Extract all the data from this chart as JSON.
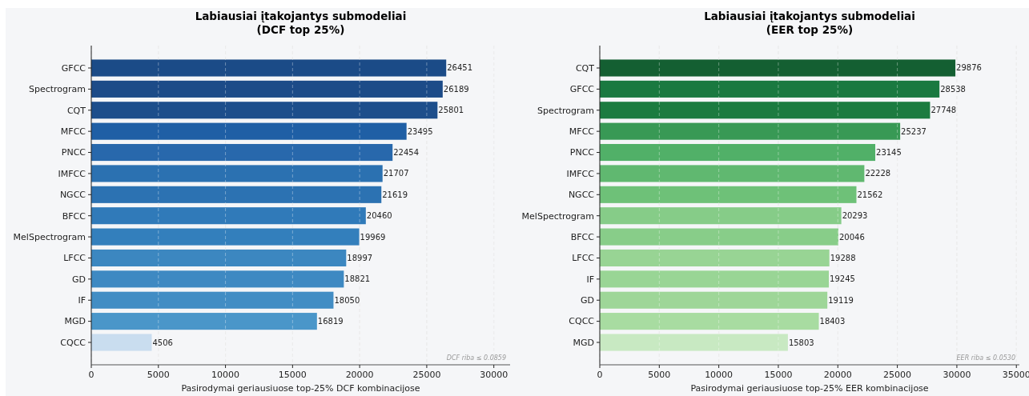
{
  "chart_data": [
    {
      "type": "bar",
      "orientation": "horizontal",
      "title": "Labiausiai įtakojantys submodeliai\n(DCF top 25%)",
      "xlabel": "Pasirodymai geriausiuose top-25% DCF kombinacijose",
      "categories": [
        "GFCC",
        "Spectrogram",
        "CQT",
        "MFCC",
        "PNCC",
        "IMFCC",
        "NGCC",
        "BFCC",
        "MelSpectrogram",
        "LFCC",
        "GD",
        "IF",
        "MGD",
        "CQCC"
      ],
      "values": [
        26451,
        26189,
        25801,
        23495,
        22454,
        21707,
        21619,
        20460,
        19969,
        18997,
        18821,
        18050,
        16819,
        4506
      ],
      "colors": [
        "#1b4b87",
        "#1c4b88",
        "#1d4e8b",
        "#1f5fa5",
        "#2868ac",
        "#2b71b1",
        "#2c72b2",
        "#307ab9",
        "#337fbc",
        "#3c87c0",
        "#3e89c2",
        "#428dc4",
        "#4a96c9",
        "#c9ddef"
      ],
      "xlim": [
        0,
        31212
      ],
      "xticks": [
        0,
        5000,
        10000,
        15000,
        20000,
        25000,
        30000
      ],
      "grid": "x",
      "data_labels": true,
      "annotations": [
        "DCF riba ≤ 0.0859"
      ]
    },
    {
      "type": "bar",
      "orientation": "horizontal",
      "title": "Labiausiai įtakojantys submodeliai\n(EER top 25%)",
      "xlabel": "Pasirodymai geriausiuose top-25% EER kombinacijose",
      "categories": [
        "CQT",
        "GFCC",
        "Spectrogram",
        "MFCC",
        "PNCC",
        "IMFCC",
        "NGCC",
        "MelSpectrogram",
        "BFCC",
        "LFCC",
        "IF",
        "GD",
        "CQCC",
        "MGD"
      ],
      "values": [
        29876,
        28538,
        27748,
        25237,
        23145,
        22228,
        21562,
        20293,
        20046,
        19288,
        19245,
        19119,
        18403,
        15803
      ],
      "colors": [
        "#145f32",
        "#1a7940",
        "#1c7b40",
        "#389955",
        "#51b068",
        "#60b870",
        "#6ec178",
        "#86cc88",
        "#88cd89",
        "#98d494",
        "#99d595",
        "#9ed698",
        "#a8dca1",
        "#c8e9c2"
      ],
      "xlim": [
        0,
        35254
      ],
      "xticks": [
        0,
        5000,
        10000,
        15000,
        20000,
        25000,
        30000,
        35000
      ],
      "grid": "x",
      "data_labels": true,
      "annotations": [
        "EER riba ≤ 0.0530"
      ]
    }
  ]
}
